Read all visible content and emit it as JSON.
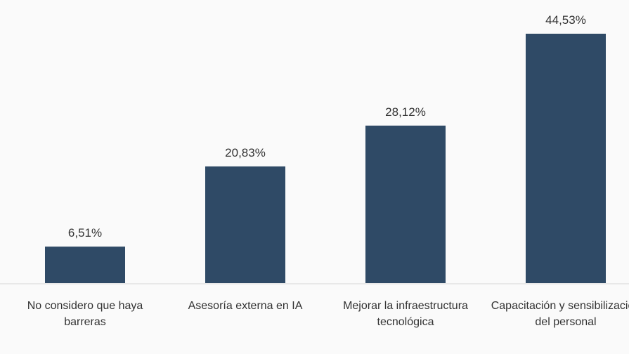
{
  "chart_data": {
    "type": "bar",
    "categories": [
      "No considero que haya barreras",
      "Asesoría externa en IA",
      "Mejorar la infraestructura tecnológica",
      "Capacitación y sensibilización del personal"
    ],
    "values": [
      6.51,
      20.83,
      28.12,
      44.53
    ],
    "value_labels": [
      "6,51%",
      "20,83%",
      "28,12%",
      "44,53%"
    ],
    "color": "#2f4a66"
  }
}
